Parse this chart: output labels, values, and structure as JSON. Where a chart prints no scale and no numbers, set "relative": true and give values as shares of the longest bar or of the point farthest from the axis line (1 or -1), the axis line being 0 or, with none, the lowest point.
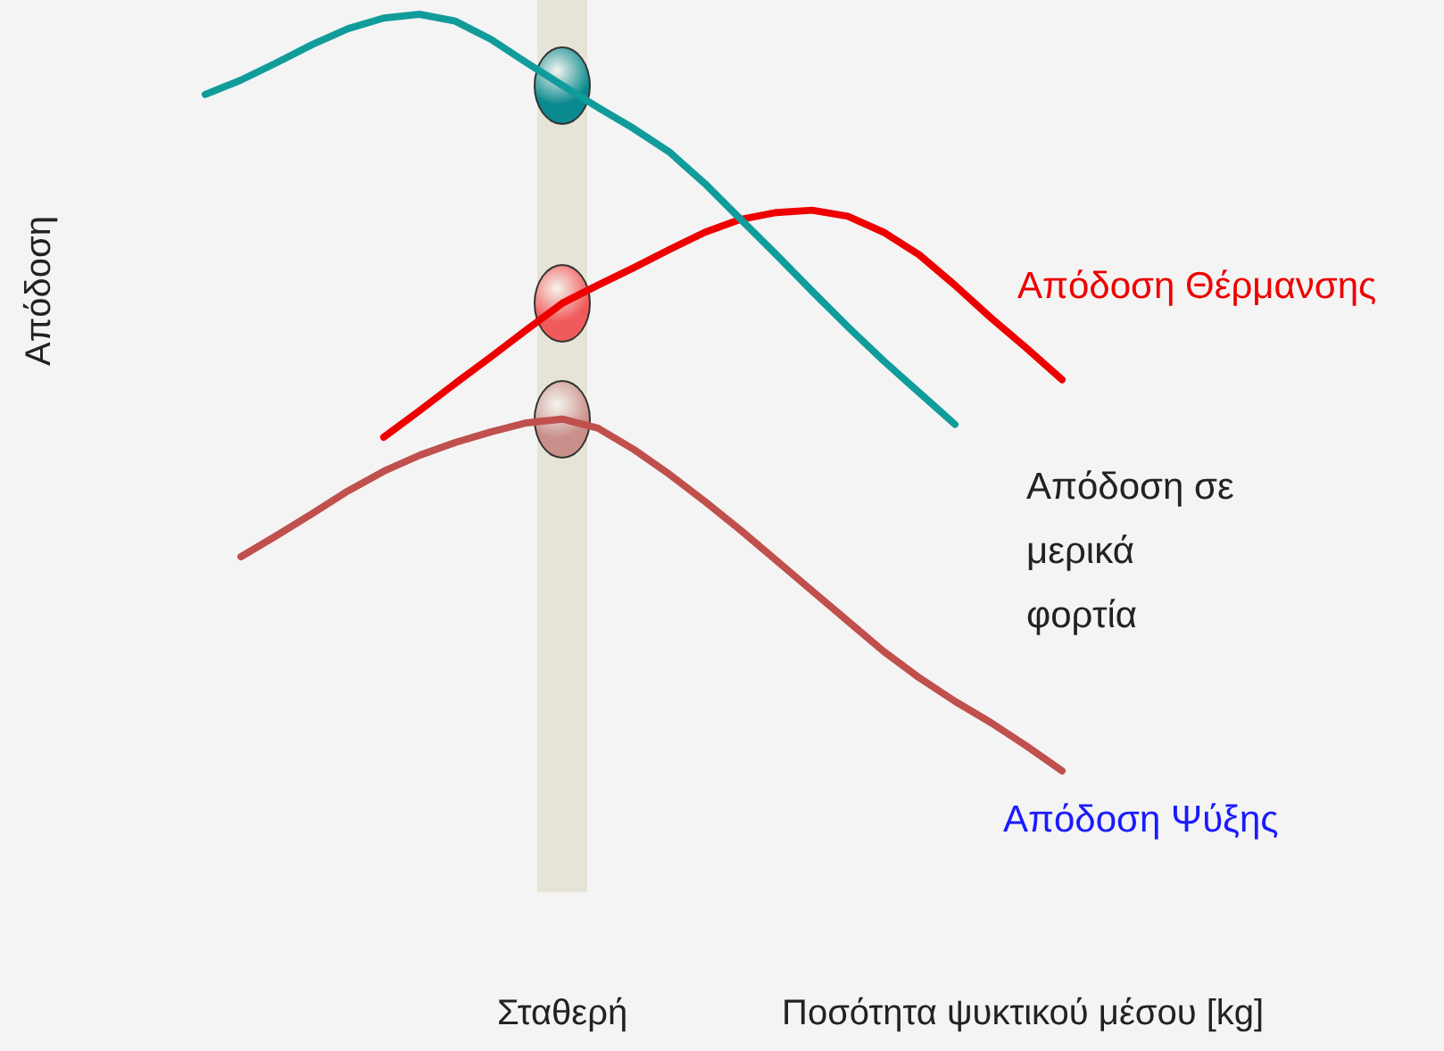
{
  "chart_data": {
    "type": "line",
    "relative": true,
    "ylabel": "Απόδοση",
    "legend": false,
    "grid": false,
    "marker": "none",
    "line_style": "solid",
    "categories": [
      null,
      null,
      null,
      null,
      null,
      null,
      null,
      null,
      null,
      null,
      null,
      null,
      null,
      null,
      null,
      null,
      null,
      null,
      null,
      null,
      null,
      null,
      null,
      null,
      null
    ],
    "annotations": [
      "Σταθερή",
      "Ποσότητα ψυκτικού μέσου [kg]"
    ],
    "series": [
      {
        "name": "Απόδοση Θέρμανσης",
        "color": "#ee0000",
        "values": [
          null,
          null,
          null,
          null,
          null,
          0.441,
          0.476,
          0.512,
          0.547,
          0.583,
          0.618,
          0.642,
          0.665,
          0.689,
          0.712,
          0.729,
          0.738,
          0.741,
          0.733,
          0.712,
          0.682,
          0.642,
          0.599,
          0.559,
          0.517
        ]
      },
      {
        "name": "Απόδοση σε μερικά φορτία",
        "color": "#119c9c",
        "values": [
          0.894,
          0.913,
          0.936,
          0.96,
          0.981,
          0.995,
          1,
          0.991,
          0.967,
          0.936,
          0.906,
          0.877,
          0.849,
          0.818,
          0.776,
          0.729,
          0.682,
          0.634,
          0.587,
          0.542,
          0.5,
          0.458,
          null,
          null,
          null
        ]
      },
      {
        "name": "Απόδοση Ψύξης",
        "color": "#c0504d",
        "values": [
          null,
          0.283,
          0.311,
          0.34,
          0.37,
          0.396,
          0.417,
          0.434,
          0.448,
          0.46,
          0.465,
          0.453,
          0.425,
          0.392,
          0.356,
          0.318,
          0.278,
          0.238,
          0.198,
          0.158,
          0.123,
          0.092,
          0.064,
          0.033,
          0
        ]
      }
    ]
  }
}
